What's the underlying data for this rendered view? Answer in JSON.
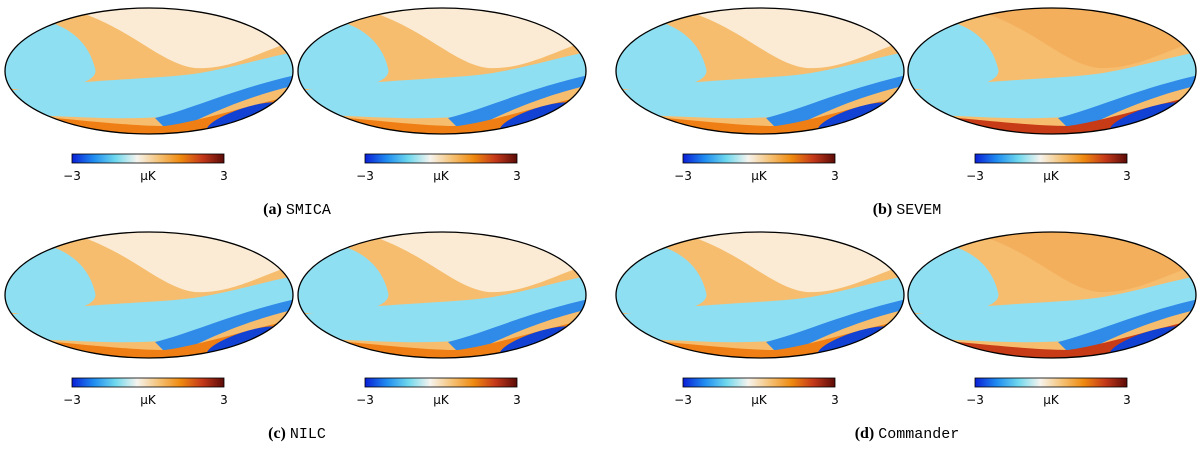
{
  "figure": {
    "colorbar": {
      "min_label": "−3",
      "unit_label": "μK",
      "max_label": "3",
      "colors": [
        "#0a1fd6",
        "#1f8cf0",
        "#6fd8ee",
        "#f6f4ee",
        "#f5c277",
        "#ef8a10",
        "#c5391a",
        "#5b0b08"
      ]
    },
    "panels": [
      {
        "letter": "(a)",
        "method": "SMICA"
      },
      {
        "letter": "(b)",
        "method": "SEVEM"
      },
      {
        "letter": "(c)",
        "method": "NILC"
      },
      {
        "letter": "(d)",
        "method": "Commander"
      }
    ]
  }
}
